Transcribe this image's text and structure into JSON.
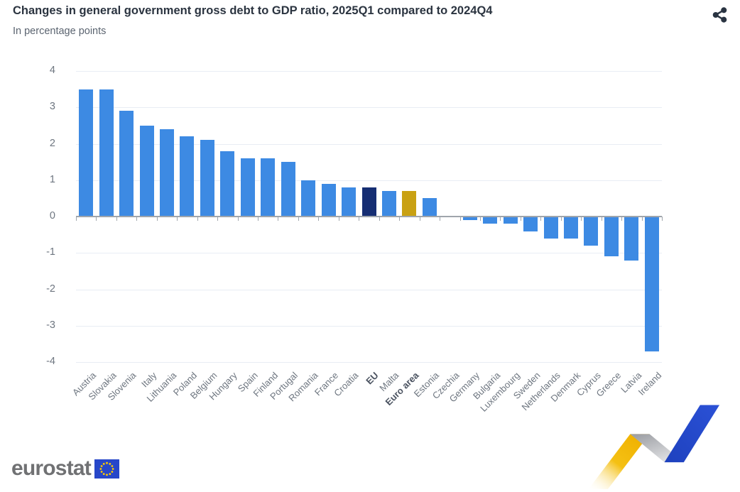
{
  "header": {
    "title": "Changes in general government gross debt to GDP ratio, 2025Q1 compared to 2024Q4",
    "subtitle": "In percentage points"
  },
  "chart_data": {
    "type": "bar",
    "title": "Changes in general government gross debt to GDP ratio, 2025Q1 compared to 2024Q4",
    "subtitle": "In percentage points",
    "xlabel": "",
    "ylabel": "",
    "unit": "percentage points",
    "ylim": [
      -4,
      4
    ],
    "yticks": [
      4,
      3,
      2,
      1,
      0,
      -1,
      -2,
      -3,
      -4
    ],
    "grid": true,
    "legend": "none",
    "label_rotation": -45,
    "categories": [
      "Austria",
      "Slovakia",
      "Slovenia",
      "Italy",
      "Lithuania",
      "Poland",
      "Belgium",
      "Hungary",
      "Spain",
      "Finland",
      "Portugal",
      "Romania",
      "France",
      "Croatia",
      "EU",
      "Malta",
      "Euro area",
      "Estonia",
      "Czechia",
      "Germany",
      "Bulgaria",
      "Luxembourg",
      "Sweden",
      "Netherlands",
      "Denmark",
      "Cyprus",
      "Greece",
      "Latvia",
      "Ireland"
    ],
    "values": [
      3.5,
      3.5,
      2.9,
      2.5,
      2.4,
      2.2,
      2.1,
      1.8,
      1.6,
      1.6,
      1.5,
      1.0,
      0.9,
      0.8,
      0.8,
      0.7,
      0.7,
      0.5,
      0.0,
      -0.1,
      -0.2,
      -0.2,
      -0.4,
      -0.6,
      -0.6,
      -0.8,
      -1.1,
      -1.2,
      -3.7
    ],
    "emphasized_categories": [
      "EU",
      "Euro area"
    ],
    "bar_colors": {
      "default": "#3D8AE3",
      "EU": "#162E73",
      "Euro area": "#C9A113"
    }
  },
  "icons": {
    "share": "share-icon",
    "eu_flag": "eu-flag-icon"
  },
  "footer": {
    "logo_text": "eurostat"
  },
  "colors": {
    "bar_default": "#3D8AE3",
    "bar_eu": "#162E73",
    "bar_euro_area": "#C9A113",
    "flag_blue": "#2747C9",
    "flag_star": "#FFCC00",
    "ribbon_yellow": "#EFB000",
    "ribbon_grey": "#C9CACD",
    "ribbon_blue": "#2547C9"
  }
}
